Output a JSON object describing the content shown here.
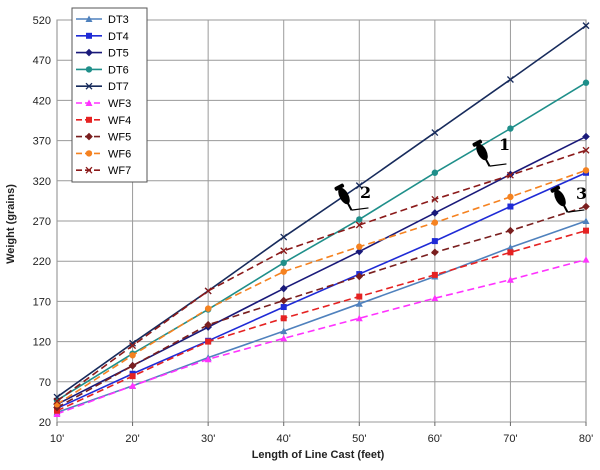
{
  "chart_data": {
    "type": "line",
    "title": "",
    "xlabel": "Length of Line Cast (feet)",
    "ylabel": "Weight (grains)",
    "categories": [
      "10'",
      "20'",
      "30'",
      "40'",
      "50'",
      "60'",
      "70'",
      "80'"
    ],
    "x": [
      10,
      20,
      30,
      40,
      50,
      60,
      70,
      80
    ],
    "ylim": [
      20,
      520
    ],
    "yticks": [
      20,
      70,
      120,
      170,
      220,
      270,
      320,
      370,
      420,
      470,
      520
    ],
    "grid": true,
    "legend": "top-left",
    "series": [
      {
        "name": "DT3",
        "color": "#4f81bd",
        "dash": false,
        "marker": "triangle",
        "values": [
          32,
          65,
          100,
          133,
          167,
          201,
          237,
          270
        ]
      },
      {
        "name": "DT4",
        "color": "#1f2bd6",
        "dash": false,
        "marker": "square",
        "values": [
          37,
          80,
          121,
          163,
          204,
          245,
          288,
          330
        ]
      },
      {
        "name": "DT5",
        "color": "#1a1a7a",
        "dash": false,
        "marker": "diamond",
        "values": [
          42,
          90,
          138,
          186,
          232,
          280,
          328,
          375
        ]
      },
      {
        "name": "DT6",
        "color": "#1f8f8a",
        "dash": false,
        "marker": "circle",
        "values": [
          47,
          105,
          160,
          218,
          272,
          330,
          385,
          442
        ]
      },
      {
        "name": "DT7",
        "color": "#172b5c",
        "dash": false,
        "marker": "x",
        "values": [
          51,
          118,
          183,
          250,
          314,
          380,
          446,
          513
        ]
      },
      {
        "name": "WF3",
        "color": "#ff33ff",
        "dash": true,
        "marker": "triangle",
        "values": [
          30,
          65,
          98,
          124,
          149,
          174,
          197,
          222
        ]
      },
      {
        "name": "WF4",
        "color": "#e52222",
        "dash": true,
        "marker": "square",
        "values": [
          34,
          77,
          120,
          149,
          176,
          203,
          231,
          258
        ]
      },
      {
        "name": "WF5",
        "color": "#7a1f1f",
        "dash": true,
        "marker": "diamond",
        "values": [
          38,
          90,
          141,
          171,
          201,
          231,
          258,
          288
        ]
      },
      {
        "name": "WF6",
        "color": "#f58220",
        "dash": true,
        "marker": "circle",
        "values": [
          42,
          103,
          161,
          207,
          238,
          268,
          300,
          333
        ]
      },
      {
        "name": "WF7",
        "color": "#8b1a1a",
        "dash": true,
        "marker": "x",
        "values": [
          46,
          115,
          183,
          233,
          265,
          297,
          327,
          358
        ]
      }
    ],
    "annotations": [
      {
        "label": "1",
        "icon": "cast-hand-icon"
      },
      {
        "label": "2",
        "icon": "cast-hand-icon"
      },
      {
        "label": "3",
        "icon": "cast-hand-icon"
      }
    ]
  }
}
